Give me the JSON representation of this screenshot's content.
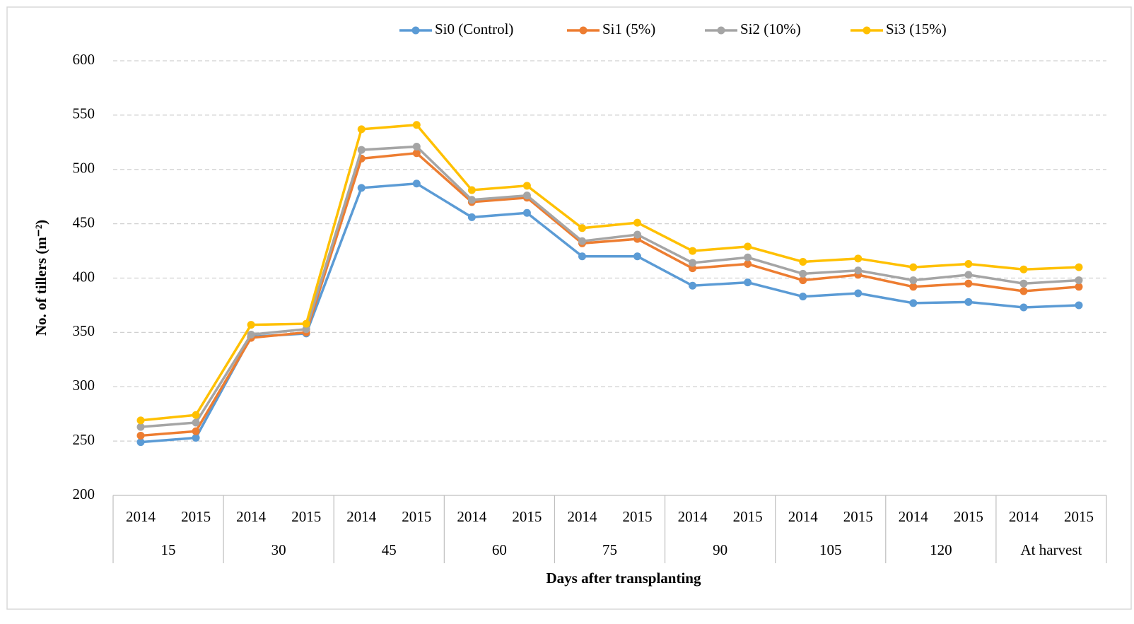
{
  "chart_data": {
    "type": "line",
    "x_label": "Days after transplanting",
    "y_label": "No. of tillers (m⁻²)",
    "categories": [
      "2014",
      "2015",
      "2014",
      "2015",
      "2014",
      "2015",
      "2014",
      "2015",
      "2014",
      "2015",
      "2014",
      "2015",
      "2014",
      "2015",
      "2014",
      "2015",
      "2014",
      "2015"
    ],
    "category_groups": [
      "15",
      "30",
      "45",
      "60",
      "75",
      "90",
      "105",
      "120",
      "At harvest"
    ],
    "series": [
      {
        "name": "Si0 (Control)",
        "color": "#5b9bd5",
        "values": [
          249,
          253,
          346,
          349,
          483,
          487,
          456,
          460,
          420,
          420,
          393,
          396,
          383,
          386,
          377,
          378,
          373,
          375
        ]
      },
      {
        "name": "Si1 (5%)",
        "color": "#ed7d31",
        "values": [
          255,
          259,
          345,
          350,
          510,
          515,
          470,
          474,
          432,
          436,
          409,
          413,
          398,
          403,
          392,
          395,
          388,
          392
        ]
      },
      {
        "name": "Si2 (10%)",
        "color": "#a5a5a5",
        "values": [
          263,
          267,
          348,
          353,
          518,
          521,
          472,
          476,
          434,
          440,
          414,
          419,
          404,
          407,
          398,
          403,
          395,
          398
        ]
      },
      {
        "name": "Si3 (15%)",
        "color": "#ffc000",
        "values": [
          269,
          274,
          357,
          358,
          537,
          541,
          481,
          485,
          446,
          451,
          425,
          429,
          415,
          418,
          410,
          413,
          408,
          410
        ]
      }
    ],
    "ylim": [
      200,
      600
    ],
    "yticks": [
      200,
      250,
      300,
      350,
      400,
      450,
      500,
      550,
      600
    ],
    "grid": true,
    "legend": "top"
  }
}
